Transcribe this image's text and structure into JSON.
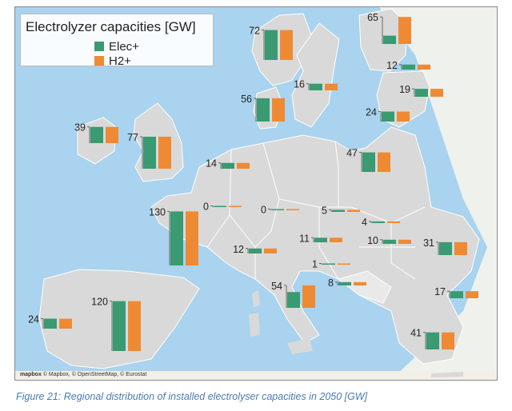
{
  "legend": {
    "title": "Electrolyzer capacities [GW]",
    "series": [
      {
        "name": "Elec+",
        "color": "#3a9a72"
      },
      {
        "name": "H2+",
        "color": "#ee8a34"
      }
    ]
  },
  "attribution": "© Mapbox, © OpenStreetMap, © Eurostat",
  "mapbox_logo": "mapbox",
  "caption": "Figure 21: Regional distribution of installed electrolyser capacities in 2050 [GW]",
  "chart_data": {
    "type": "bar",
    "layout": "map-embedded grouped bars",
    "series": [
      "Elec+",
      "H2+"
    ],
    "unit": "GW",
    "regions": [
      {
        "label": "72",
        "elec": 72,
        "h2": 72
      },
      {
        "label": "65",
        "elec": 20,
        "h2": 65
      },
      {
        "label": "12",
        "elec": 12,
        "h2": 12
      },
      {
        "label": "16",
        "elec": 16,
        "h2": 16
      },
      {
        "label": "19",
        "elec": 19,
        "h2": 19
      },
      {
        "label": "56",
        "elec": 56,
        "h2": 56
      },
      {
        "label": "24",
        "elec": 24,
        "h2": 24
      },
      {
        "label": "39",
        "elec": 39,
        "h2": 39
      },
      {
        "label": "77",
        "elec": 77,
        "h2": 77
      },
      {
        "label": "14",
        "elec": 14,
        "h2": 14
      },
      {
        "label": "47",
        "elec": 47,
        "h2": 47
      },
      {
        "label": "0",
        "elec": 0,
        "h2": 0
      },
      {
        "label": "0",
        "elec": 0,
        "h2": 0
      },
      {
        "label": "130",
        "elec": 130,
        "h2": 130
      },
      {
        "label": "5",
        "elec": 5,
        "h2": 5
      },
      {
        "label": "4",
        "elec": 4,
        "h2": 4
      },
      {
        "label": "12",
        "elec": 12,
        "h2": 12
      },
      {
        "label": "11",
        "elec": 11,
        "h2": 11
      },
      {
        "label": "10",
        "elec": 10,
        "h2": 10
      },
      {
        "label": "31",
        "elec": 31,
        "h2": 31
      },
      {
        "label": "1",
        "elec": 1,
        "h2": 1
      },
      {
        "label": "8",
        "elec": 8,
        "h2": 8
      },
      {
        "label": "54",
        "elec": 38,
        "h2": 54
      },
      {
        "label": "17",
        "elec": 17,
        "h2": 17
      },
      {
        "label": "24",
        "elec": 24,
        "h2": 24
      },
      {
        "label": "120",
        "elec": 120,
        "h2": 120
      },
      {
        "label": "41",
        "elec": 41,
        "h2": 41
      }
    ]
  }
}
